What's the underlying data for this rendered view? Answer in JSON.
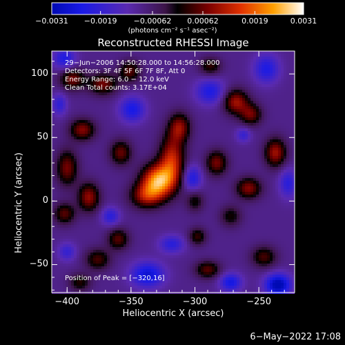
{
  "chart_data": {
    "type": "heatmap",
    "title": "Reconstructed RHESSI Image",
    "xlabel": "Heliocentric X (arcsec)",
    "ylabel": "Heliocentric Y (arcsec)",
    "xlim": [
      -412,
      -222
    ],
    "ylim": [
      -72,
      118
    ],
    "xticks": [
      -400,
      -350,
      -300,
      -250
    ],
    "yticks": [
      -50,
      0,
      50,
      100
    ],
    "xtick_labels": [
      "−400",
      "−350",
      "−300",
      "−250"
    ],
    "ytick_labels": [
      "−50",
      "0",
      "50",
      "100"
    ],
    "colorbar": {
      "min": -0.0031,
      "max": 0.0031,
      "tick_values": [
        -0.0031,
        -0.0019,
        -0.00062,
        0.00062,
        0.0019,
        0.0031
      ],
      "tick_labels": [
        "−0.0031",
        "−0.0019",
        "−0.00062",
        "0.00062",
        "0.0019",
        "0.0031"
      ],
      "units": "(photons cm⁻² s⁻¹ asec⁻²)"
    },
    "annotations": [
      "29−Jun−2006 14:50:28.000 to 14:56:28.000",
      "Detectors: 3F 4F 5F 6F 7F 8F, Att 0",
      "Energy Range: 6.0 − 12.0 keV",
      "Clean    Total counts: 3.17E+04"
    ],
    "peak_label": "Position of Peak = [−320,16]",
    "peak": [
      -320,
      16
    ],
    "sources": [
      {
        "x": -329,
        "y": 16,
        "amp": 0.0031,
        "sx": 9,
        "sy": 9
      },
      {
        "x": -318,
        "y": 32,
        "amp": 0.0022,
        "sx": 7,
        "sy": 14
      },
      {
        "x": -338,
        "y": 4,
        "amp": 0.0018,
        "sx": 9,
        "sy": 7
      },
      {
        "x": -312,
        "y": 58,
        "amp": 0.0017,
        "sx": 6,
        "sy": 8
      },
      {
        "x": -358,
        "y": 38,
        "amp": 0.0015,
        "sx": 6,
        "sy": 7
      },
      {
        "x": -388,
        "y": 56,
        "amp": 0.0017,
        "sx": 7,
        "sy": 6
      },
      {
        "x": -400,
        "y": 26,
        "amp": 0.0016,
        "sx": 6,
        "sy": 10
      },
      {
        "x": -396,
        "y": 96,
        "amp": 0.0016,
        "sx": 7,
        "sy": 6
      },
      {
        "x": -372,
        "y": 92,
        "amp": 0.0016,
        "sx": 8,
        "sy": 6
      },
      {
        "x": -351,
        "y": 102,
        "amp": 0.0014,
        "sx": 6,
        "sy": 6
      },
      {
        "x": -288,
        "y": 106,
        "amp": 0.0012,
        "sx": 6,
        "sy": 5
      },
      {
        "x": -268,
        "y": 78,
        "amp": 0.0019,
        "sx": 7,
        "sy": 7
      },
      {
        "x": -256,
        "y": 68,
        "amp": 0.0015,
        "sx": 6,
        "sy": 6
      },
      {
        "x": -237,
        "y": 38,
        "amp": 0.0019,
        "sx": 6,
        "sy": 8
      },
      {
        "x": -258,
        "y": 10,
        "amp": 0.0017,
        "sx": 7,
        "sy": 6
      },
      {
        "x": -283,
        "y": 30,
        "amp": 0.0016,
        "sx": 6,
        "sy": 7
      },
      {
        "x": -383,
        "y": 3,
        "amp": 0.0018,
        "sx": 6,
        "sy": 8
      },
      {
        "x": -402,
        "y": -10,
        "amp": 0.0014,
        "sx": 6,
        "sy": 6
      },
      {
        "x": -376,
        "y": -46,
        "amp": 0.0013,
        "sx": 7,
        "sy": 6
      },
      {
        "x": -360,
        "y": -30,
        "amp": 0.0014,
        "sx": 6,
        "sy": 6
      },
      {
        "x": -298,
        "y": -28,
        "amp": 0.0012,
        "sx": 5,
        "sy": 5
      },
      {
        "x": -290,
        "y": -54,
        "amp": 0.0014,
        "sx": 7,
        "sy": 5
      },
      {
        "x": -246,
        "y": -44,
        "amp": 0.0013,
        "sx": 7,
        "sy": 6
      },
      {
        "x": -300,
        "y": 0,
        "amp": 0.001,
        "sx": 5,
        "sy": 6
      },
      {
        "x": -390,
        "y": -64,
        "amp": 0.0011,
        "sx": 6,
        "sy": 5
      },
      {
        "x": -272,
        "y": -12,
        "amp": 0.001,
        "sx": 6,
        "sy": 6
      },
      {
        "x": -235,
        "y": -66,
        "amp": -0.0024,
        "sx": 7,
        "sy": 6
      },
      {
        "x": -272,
        "y": -64,
        "amp": -0.0016,
        "sx": 6,
        "sy": 5
      },
      {
        "x": -337,
        "y": -58,
        "amp": -0.0018,
        "sx": 9,
        "sy": 7
      },
      {
        "x": -402,
        "y": 112,
        "amp": -0.0014,
        "sx": 6,
        "sy": 6
      },
      {
        "x": -349,
        "y": 72,
        "amp": -0.0015,
        "sx": 7,
        "sy": 7
      },
      {
        "x": -288,
        "y": 86,
        "amp": -0.0014,
        "sx": 8,
        "sy": 7
      },
      {
        "x": -244,
        "y": 104,
        "amp": -0.0014,
        "sx": 7,
        "sy": 8
      },
      {
        "x": -302,
        "y": 18,
        "amp": -0.0014,
        "sx": 5,
        "sy": 7
      },
      {
        "x": -227,
        "y": 14,
        "amp": -0.0012,
        "sx": 5,
        "sy": 8
      },
      {
        "x": -366,
        "y": -12,
        "amp": -0.0012,
        "sx": 5,
        "sy": 5
      },
      {
        "x": -318,
        "y": -34,
        "amp": -0.0012,
        "sx": 7,
        "sy": 5
      },
      {
        "x": -406,
        "y": 76,
        "amp": -0.0011,
        "sx": 4,
        "sy": 6
      },
      {
        "x": -262,
        "y": 52,
        "amp": -0.001,
        "sx": 4,
        "sy": 4
      },
      {
        "x": -400,
        "y": -40,
        "amp": -0.001,
        "sx": 5,
        "sy": 5
      }
    ]
  },
  "footer_date": "6−May−2022 17:08"
}
